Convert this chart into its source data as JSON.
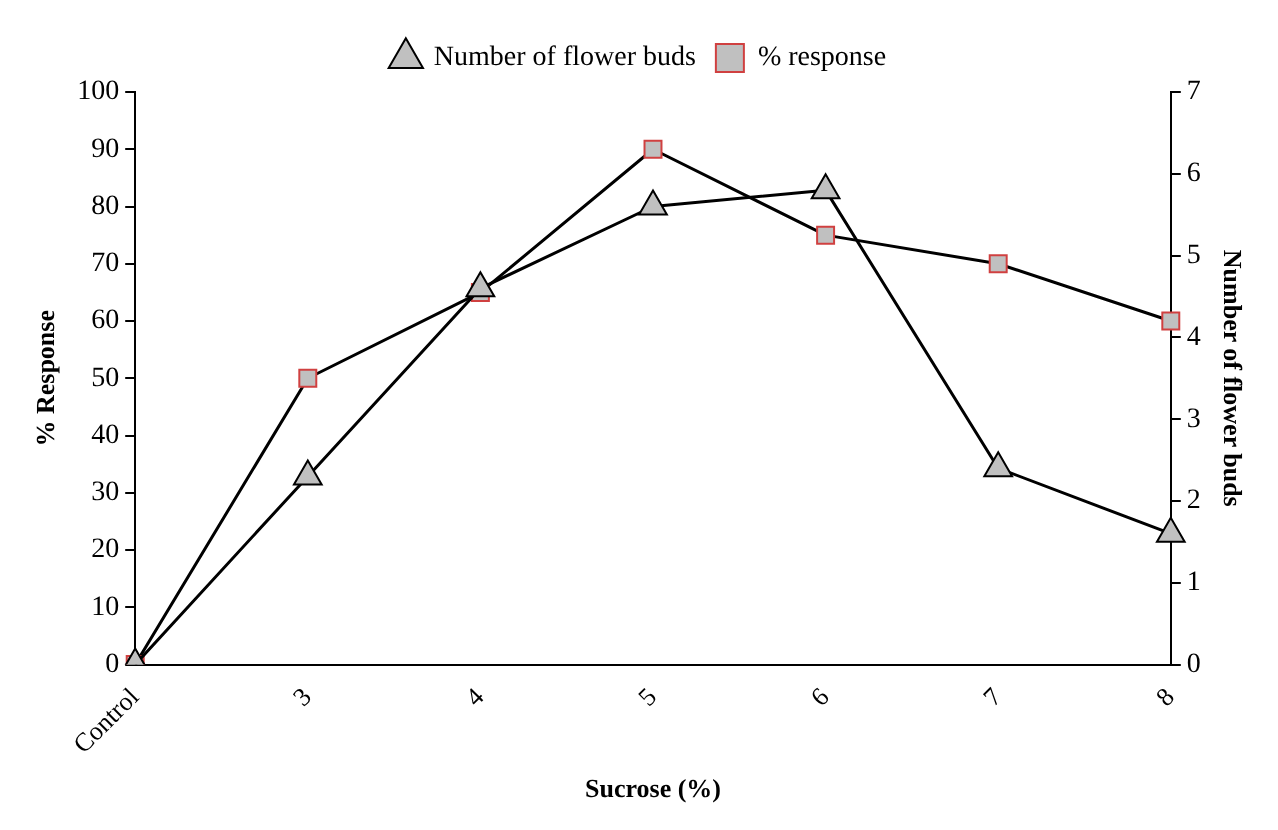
{
  "chart_data": {
    "type": "line",
    "xlabel": "Sucrose (%)",
    "ylabel": "% Response",
    "y2label": "Number of flower buds",
    "categories": [
      "Control",
      "3",
      "4",
      "5",
      "6",
      "7",
      "8"
    ],
    "series": [
      {
        "name": "% response",
        "color": "#c0c0c0",
        "values": [
          0,
          50,
          65,
          90,
          75,
          70,
          60
        ],
        "marker": "square"
      },
      {
        "name": "Number of flower buds",
        "color": "#c0c0c0",
        "values": [
          0,
          2.3,
          4.6,
          5.6,
          5.8,
          2.4,
          1.6
        ],
        "marker": "triangle",
        "axis": "y2"
      }
    ],
    "ylim": [
      0,
      100
    ],
    "yticks": [
      0,
      10,
      20,
      30,
      40,
      50,
      60,
      70,
      80,
      90,
      100
    ],
    "y2lim": [
      0,
      7
    ],
    "y2ticks": [
      0,
      1,
      2,
      3,
      4,
      5,
      6,
      7
    ],
    "legend": "top",
    "grid": false,
    "line_style": "solid"
  }
}
